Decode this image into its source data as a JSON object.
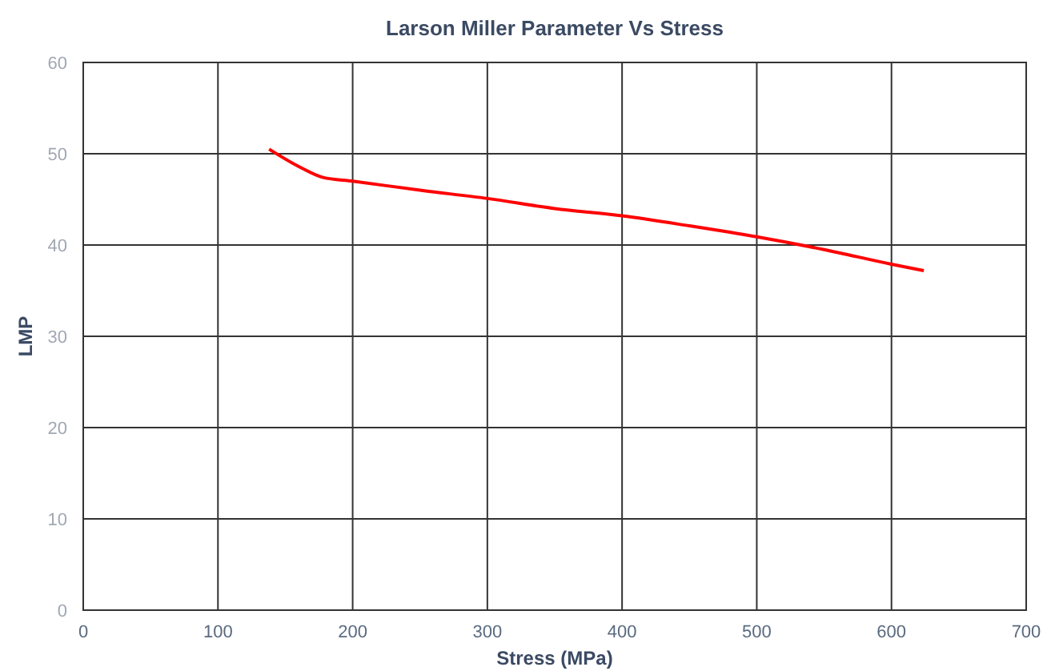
{
  "chart_data": {
    "type": "line",
    "title": "Larson Miller Parameter Vs Stress",
    "xlabel": "Stress (MPa)",
    "ylabel": "LMP",
    "x": [
      138,
      160,
      178,
      200,
      250,
      300,
      350,
      400,
      450,
      500,
      550,
      600,
      624
    ],
    "series": [
      {
        "color": "#ff0000",
        "values": [
          50.5,
          48.6,
          47.4,
          47.0,
          46.0,
          45.1,
          44.0,
          43.2,
          42.1,
          40.9,
          39.5,
          37.9,
          37.2
        ]
      }
    ],
    "xlim": [
      0,
      700
    ],
    "xticks": [
      0,
      100,
      200,
      300,
      400,
      500,
      600,
      700
    ],
    "ylim": [
      0,
      60
    ],
    "yticks": [
      0,
      10,
      20,
      30,
      40,
      50,
      60
    ],
    "grid": true,
    "marker": "none",
    "line_style": "solid"
  }
}
